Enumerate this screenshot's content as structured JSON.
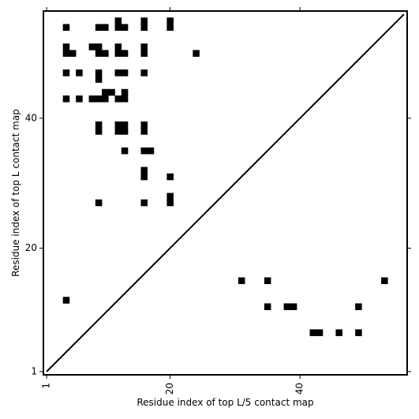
{
  "chart_data": {
    "type": "heatmap",
    "title": "",
    "xlabel": "Residue index of top L/5 contact map",
    "ylabel": "Residue index of top L contact map",
    "xlim": [
      0.5,
      56.5
    ],
    "ylim": [
      0.5,
      56.5
    ],
    "x_ticks": [
      1,
      20,
      40
    ],
    "y_ticks": [
      1,
      20,
      40
    ],
    "grid": false,
    "legend": "none",
    "colors": {
      "cell": "#000000",
      "background": "#ffffff",
      "diagonal": "#000000"
    },
    "diagonal_line": {
      "from": [
        1,
        1
      ],
      "to": [
        56,
        56
      ]
    },
    "upper_triangle_contacts": [
      [
        4,
        54
      ],
      [
        9,
        54
      ],
      [
        10,
        54
      ],
      [
        12,
        54
      ],
      [
        13,
        54
      ],
      [
        16,
        54
      ],
      [
        20,
        54
      ],
      [
        12,
        55
      ],
      [
        16,
        55
      ],
      [
        20,
        55
      ],
      [
        4,
        51
      ],
      [
        8,
        51
      ],
      [
        9,
        51
      ],
      [
        12,
        51
      ],
      [
        16,
        51
      ],
      [
        4,
        50
      ],
      [
        5,
        50
      ],
      [
        9,
        50
      ],
      [
        10,
        50
      ],
      [
        12,
        50
      ],
      [
        13,
        50
      ],
      [
        16,
        50
      ],
      [
        24,
        50
      ],
      [
        4,
        47
      ],
      [
        6,
        47
      ],
      [
        9,
        47
      ],
      [
        12,
        47
      ],
      [
        13,
        47
      ],
      [
        16,
        47
      ],
      [
        9,
        46
      ],
      [
        10,
        44
      ],
      [
        11,
        44
      ],
      [
        13,
        44
      ],
      [
        4,
        43
      ],
      [
        6,
        43
      ],
      [
        8,
        43
      ],
      [
        9,
        43
      ],
      [
        10,
        43
      ],
      [
        12,
        43
      ],
      [
        13,
        43
      ],
      [
        9,
        39
      ],
      [
        12,
        39
      ],
      [
        13,
        39
      ],
      [
        16,
        39
      ],
      [
        9,
        38
      ],
      [
        12,
        38
      ],
      [
        13,
        38
      ],
      [
        16,
        38
      ],
      [
        13,
        35
      ],
      [
        16,
        35
      ],
      [
        17,
        35
      ],
      [
        16,
        32
      ],
      [
        16,
        31
      ],
      [
        20,
        31
      ],
      [
        20,
        28
      ],
      [
        9,
        27
      ],
      [
        16,
        27
      ],
      [
        20,
        27
      ]
    ],
    "lower_triangle_contacts": [
      [
        4,
        12
      ],
      [
        31,
        15
      ],
      [
        35,
        15
      ],
      [
        53,
        15
      ],
      [
        35,
        11
      ],
      [
        38,
        11
      ],
      [
        39,
        11
      ],
      [
        49,
        11
      ],
      [
        42,
        7
      ],
      [
        43,
        7
      ],
      [
        46,
        7
      ],
      [
        49,
        7
      ]
    ]
  }
}
